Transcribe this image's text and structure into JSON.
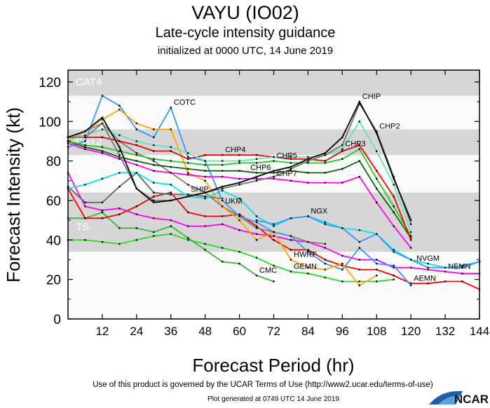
{
  "header": {
    "title": "VAYU (IO02)",
    "subtitle": "Late-cycle intensity guidance",
    "init": "initialized at 0000 UTC, 14 June 2019"
  },
  "footer": {
    "terms": "Use of this product is governed by the UCAR Terms of Use (http://www2.ucar.edu/terms-of-use)",
    "generated": "Plot generated at 0749 UTC   14 June 2019",
    "logo": "NCAR"
  },
  "chart_data": {
    "type": "line",
    "title": "Late-cycle intensity guidance",
    "xlabel": "Forecast Period (hr)",
    "ylabel": "Forecast Intensity (kt)",
    "xlim": [
      0,
      144
    ],
    "ylim": [
      0,
      126
    ],
    "xticks": [
      12,
      24,
      36,
      48,
      60,
      72,
      84,
      96,
      108,
      120,
      132,
      144
    ],
    "yticks": [
      0,
      20,
      40,
      60,
      80,
      100,
      120
    ],
    "grid": false,
    "bands": [
      {
        "label": "TS",
        "min": 34,
        "max": 64,
        "color": "#d6d6d6"
      },
      {
        "label": "CAT1",
        "min": 64,
        "max": 83,
        "color": "#fafafa"
      },
      {
        "label": "CAT2",
        "min": 83,
        "max": 96,
        "color": "#d6d6d6"
      },
      {
        "label": "CAT3",
        "min": 96,
        "max": 113,
        "color": "#fafafa"
      },
      {
        "label": "CAT4",
        "min": 113,
        "max": 126,
        "color": "#d6d6d6"
      }
    ],
    "x": [
      0,
      6,
      12,
      18,
      24,
      30,
      36,
      42,
      48,
      54,
      60,
      66,
      72,
      78,
      84,
      90,
      96,
      102,
      108,
      114,
      120,
      126,
      132,
      138,
      144
    ],
    "series": [
      {
        "name": "GEMN",
        "color": "#22dd22",
        "values": [
          40,
          40,
          39,
          38,
          40,
          42,
          43,
          40,
          38,
          36,
          34,
          31,
          27,
          24,
          23,
          21,
          19,
          19,
          19,
          20,
          null,
          null,
          null,
          null,
          null
        ]
      },
      {
        "name": "CMC",
        "color": "#33bb33",
        "values": [
          51,
          51,
          54,
          46,
          46,
          44,
          47,
          41,
          35,
          29,
          28,
          22,
          19,
          null,
          null,
          null,
          null,
          null,
          null,
          null,
          null,
          null,
          null,
          null,
          null
        ]
      },
      {
        "name": "NEMN",
        "color": "#ff00ff",
        "values": [
          74,
          57,
          55,
          56,
          53,
          51,
          50,
          47,
          47,
          48,
          45,
          43,
          42,
          40,
          39,
          36,
          32,
          30,
          30,
          26,
          26,
          25,
          24,
          23,
          23
        ]
      },
      {
        "name": "AEMN",
        "color": "#ff0000",
        "values": [
          66,
          51,
          51,
          53,
          57,
          62,
          64,
          54,
          52,
          52,
          53,
          47,
          40,
          35,
          35,
          30,
          27,
          25,
          25,
          22,
          18,
          18,
          19,
          19,
          15
        ]
      },
      {
        "name": "UKM",
        "color": "#808080",
        "values": [
          92,
          95,
          99,
          90,
          84,
          80,
          74,
          68,
          64,
          57,
          52,
          46,
          44,
          42,
          39,
          38,
          null,
          null,
          null,
          null,
          null,
          null,
          null,
          null,
          null
        ]
      },
      {
        "name": "SHIP",
        "color": "#666666",
        "values": [
          67,
          59,
          59,
          67,
          74,
          64,
          63,
          63,
          62,
          61,
          null,
          null,
          null,
          null,
          null,
          null,
          null,
          null,
          null,
          null,
          null,
          null,
          null,
          null,
          null
        ]
      },
      {
        "name": "NVGM",
        "color": "#00e5ee",
        "values": [
          66,
          68,
          71,
          74,
          74,
          69,
          68,
          62,
          61,
          65,
          61,
          52,
          47,
          51,
          52,
          49,
          46,
          45,
          43,
          35,
          30,
          28,
          26,
          27,
          29
        ]
      },
      {
        "name": "NGX",
        "color": "#3399ff",
        "values": [
          null,
          null,
          null,
          null,
          null,
          null,
          null,
          null,
          null,
          null,
          null,
          50,
          48,
          51,
          52,
          48,
          46,
          39,
          43,
          34,
          30,
          26,
          26,
          26,
          29
        ]
      },
      {
        "name": "COTC",
        "color": "#3399ff",
        "values": [
          87,
          90,
          113,
          108,
          96,
          92,
          107,
          82,
          80,
          60,
          52,
          49,
          44,
          42,
          34,
          28,
          25,
          36,
          28,
          27,
          17,
          null,
          null,
          null,
          null
        ]
      },
      {
        "name": "HWRF",
        "color": "#ffa500",
        "values": [
          90,
          95,
          101,
          106,
          99,
          96,
          96,
          74,
          70,
          57,
          50,
          40,
          44,
          30,
          26,
          25,
          28,
          17,
          22,
          null,
          null,
          null,
          null,
          null,
          null
        ]
      },
      {
        "name": "CHP7",
        "color": "#ff00ff",
        "values": [
          89,
          86,
          84,
          81,
          78,
          75,
          74,
          73,
          72,
          72,
          71,
          71,
          71,
          70,
          69,
          69,
          69,
          72,
          59,
          47,
          36,
          null,
          null,
          null,
          null
        ]
      },
      {
        "name": "CHP6",
        "color": "#0a6a0a",
        "values": [
          90,
          87,
          85,
          82,
          80,
          78,
          77,
          76,
          75,
          75,
          75,
          74,
          74,
          75,
          74,
          74,
          76,
          80,
          66,
          54,
          41,
          null,
          null,
          null,
          null
        ]
      },
      {
        "name": "CHP5",
        "color": "#22cc22",
        "values": [
          90,
          88,
          87,
          85,
          83,
          81,
          80,
          79,
          78,
          78,
          79,
          79,
          80,
          79,
          79,
          79,
          81,
          86,
          71,
          57,
          42,
          null,
          null,
          null,
          null
        ]
      },
      {
        "name": "CHP4",
        "color": "#ff0000",
        "values": [
          92,
          92,
          92,
          90,
          88,
          85,
          85,
          81,
          83,
          83,
          83,
          83,
          82,
          81,
          81,
          80,
          85,
          88,
          75,
          62,
          40,
          null,
          null,
          null,
          null
        ]
      },
      {
        "name": "CHP3",
        "color": "#66e0c0",
        "values": [
          92,
          93,
          96,
          93,
          90,
          88,
          87,
          84,
          80,
          80,
          80,
          81,
          82,
          82,
          82,
          83,
          86,
          100,
          85,
          68,
          44,
          null,
          null,
          null,
          null
        ]
      },
      {
        "name": "CHP2",
        "color": "#777777",
        "values": [
          92,
          92,
          99,
          83,
          66,
          60,
          60,
          62,
          64,
          66,
          68,
          70,
          72,
          76,
          80,
          83,
          88,
          109,
          95,
          72,
          48,
          null,
          null,
          null,
          null
        ]
      },
      {
        "name": "CHIP",
        "color": "#000000",
        "values": [
          92,
          95,
          102,
          87,
          66,
          59,
          60,
          62,
          64,
          67,
          69,
          72,
          75,
          77,
          81,
          84,
          92,
          110,
          94,
          71,
          50,
          null,
          null,
          null,
          null
        ]
      }
    ]
  }
}
